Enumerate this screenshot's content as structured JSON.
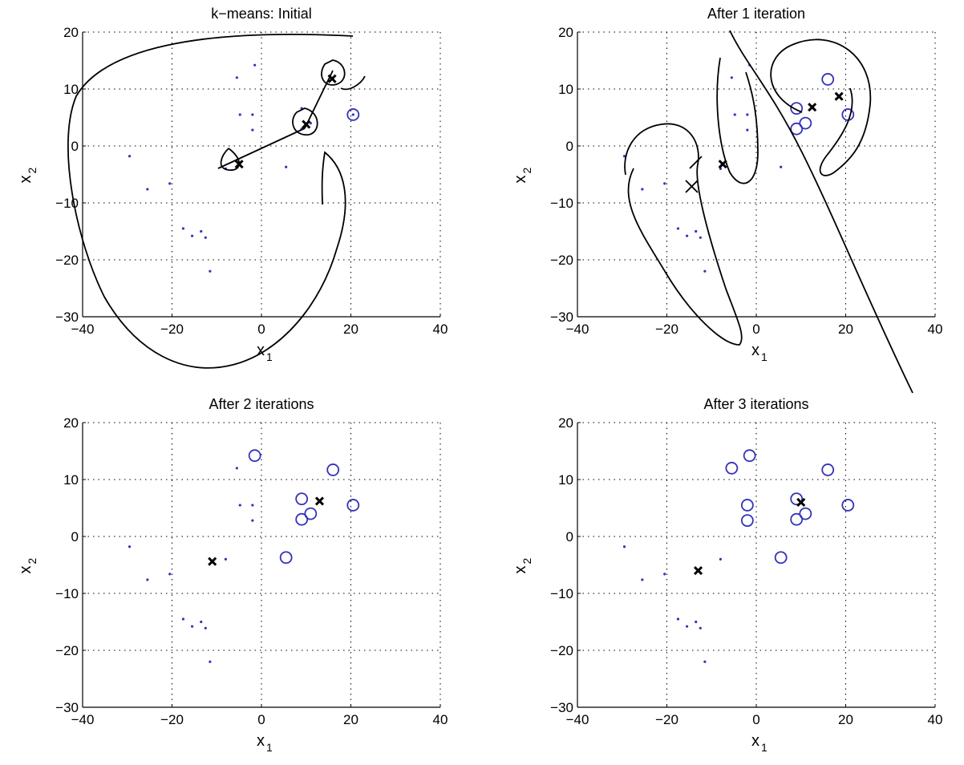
{
  "colors": {
    "point": "#3333bb",
    "centroid": "#000000",
    "grid": "#000000"
  },
  "chart_data": [
    {
      "type": "scatter",
      "title": "k−means: Initial",
      "xlabel": "x",
      "xlabel_sub": "1",
      "ylabel": "x",
      "ylabel_sub": "2",
      "xlim": [
        -40,
        40
      ],
      "ylim": [
        -30,
        20
      ],
      "xticks": [
        -40,
        -20,
        0,
        20,
        40
      ],
      "yticks": [
        -30,
        -20,
        -10,
        0,
        10,
        20
      ],
      "grid": true,
      "points": [
        [
          -29.5,
          -1.8
        ],
        [
          -25.5,
          -7.6
        ],
        [
          -20.5,
          -6.6
        ],
        [
          -17.5,
          -14.5
        ],
        [
          -15.5,
          -15.8
        ],
        [
          -13.5,
          -15.0
        ],
        [
          -12.5,
          -16.1
        ],
        [
          -11.5,
          -22.0
        ],
        [
          -8,
          -4
        ],
        [
          -5.5,
          12
        ],
        [
          -4.8,
          5.5
        ],
        [
          -2,
          5.5
        ],
        [
          -1.5,
          14.2
        ],
        [
          -2,
          2.8
        ],
        [
          5.5,
          -3.7
        ],
        [
          9,
          6.6
        ],
        [
          9,
          3.0
        ],
        [
          11,
          4.0
        ],
        [
          16,
          11.7
        ],
        [
          20.5,
          5.5
        ]
      ],
      "circled": [
        [
          20.5,
          5.5
        ]
      ],
      "centroids": [
        [
          -5,
          -3.2
        ],
        [
          10,
          3.8
        ],
        [
          15.8,
          11.8
        ]
      ]
    },
    {
      "type": "scatter",
      "title": "After 1 iteration",
      "xlabel": "x",
      "xlabel_sub": "1",
      "ylabel": "x",
      "ylabel_sub": "2",
      "xlim": [
        -40,
        40
      ],
      "ylim": [
        -30,
        20
      ],
      "xticks": [
        -40,
        -20,
        0,
        20,
        40
      ],
      "yticks": [
        -30,
        -20,
        -10,
        0,
        10,
        20
      ],
      "grid": true,
      "points": [
        [
          -29.5,
          -1.8
        ],
        [
          -25.5,
          -7.6
        ],
        [
          -20.5,
          -6.6
        ],
        [
          -17.5,
          -14.5
        ],
        [
          -15.5,
          -15.8
        ],
        [
          -13.5,
          -15.0
        ],
        [
          -12.5,
          -16.1
        ],
        [
          -11.5,
          -22.0
        ],
        [
          -8,
          -4
        ],
        [
          -5.5,
          12
        ],
        [
          -4.8,
          5.5
        ],
        [
          -2,
          5.5
        ],
        [
          -1.5,
          14.2
        ],
        [
          -2,
          2.8
        ],
        [
          5.5,
          -3.7
        ]
      ],
      "circled": [
        [
          9,
          6.6
        ],
        [
          9,
          3.0
        ],
        [
          11,
          4.0
        ],
        [
          16,
          11.7
        ],
        [
          20.5,
          5.5
        ]
      ],
      "centroids": [
        [
          -7.5,
          -3.2
        ],
        [
          12.5,
          6.8
        ],
        [
          18.5,
          8.7
        ]
      ]
    },
    {
      "type": "scatter",
      "title": "After 2 iterations",
      "xlabel": "x",
      "xlabel_sub": "1",
      "ylabel": "x",
      "ylabel_sub": "2",
      "xlim": [
        -40,
        40
      ],
      "ylim": [
        -30,
        20
      ],
      "xticks": [
        -40,
        -20,
        0,
        20,
        40
      ],
      "yticks": [
        -30,
        -20,
        -10,
        0,
        10,
        20
      ],
      "grid": true,
      "points": [
        [
          -29.5,
          -1.8
        ],
        [
          -25.5,
          -7.6
        ],
        [
          -20.5,
          -6.6
        ],
        [
          -17.5,
          -14.5
        ],
        [
          -15.5,
          -15.8
        ],
        [
          -13.5,
          -15.0
        ],
        [
          -12.5,
          -16.1
        ],
        [
          -11.5,
          -22.0
        ],
        [
          -8,
          -4
        ],
        [
          -5.5,
          12
        ],
        [
          -4.8,
          5.5
        ],
        [
          -2,
          5.5
        ],
        [
          -2,
          2.8
        ]
      ],
      "circled": [
        [
          -1.5,
          14.2
        ],
        [
          5.5,
          -3.7
        ],
        [
          9,
          6.6
        ],
        [
          9,
          3.0
        ],
        [
          11,
          4.0
        ],
        [
          16,
          11.7
        ],
        [
          20.5,
          5.5
        ]
      ],
      "centroids": [
        [
          -11,
          -4.4
        ],
        [
          13,
          6.2
        ]
      ]
    },
    {
      "type": "scatter",
      "title": "After 3 iterations",
      "xlabel": "x",
      "xlabel_sub": "1",
      "ylabel": "x",
      "ylabel_sub": "2",
      "xlim": [
        -40,
        40
      ],
      "ylim": [
        -30,
        20
      ],
      "xticks": [
        -40,
        -20,
        0,
        20,
        40
      ],
      "yticks": [
        -30,
        -20,
        -10,
        0,
        10,
        20
      ],
      "grid": true,
      "points": [
        [
          -29.5,
          -1.8
        ],
        [
          -25.5,
          -7.6
        ],
        [
          -20.5,
          -6.6
        ],
        [
          -17.5,
          -14.5
        ],
        [
          -15.5,
          -15.8
        ],
        [
          -13.5,
          -15.0
        ],
        [
          -12.5,
          -16.1
        ],
        [
          -11.5,
          -22.0
        ],
        [
          -8,
          -4
        ]
      ],
      "circled": [
        [
          -5.5,
          12
        ],
        [
          -2,
          5.5
        ],
        [
          -1.5,
          14.2
        ],
        [
          -2,
          2.8
        ],
        [
          5.5,
          -3.7
        ],
        [
          9,
          6.6
        ],
        [
          9,
          3.0
        ],
        [
          11,
          4.0
        ],
        [
          16,
          11.7
        ],
        [
          20.5,
          5.5
        ]
      ],
      "centroids": [
        [
          -13,
          -6
        ],
        [
          10,
          6
        ]
      ]
    }
  ]
}
